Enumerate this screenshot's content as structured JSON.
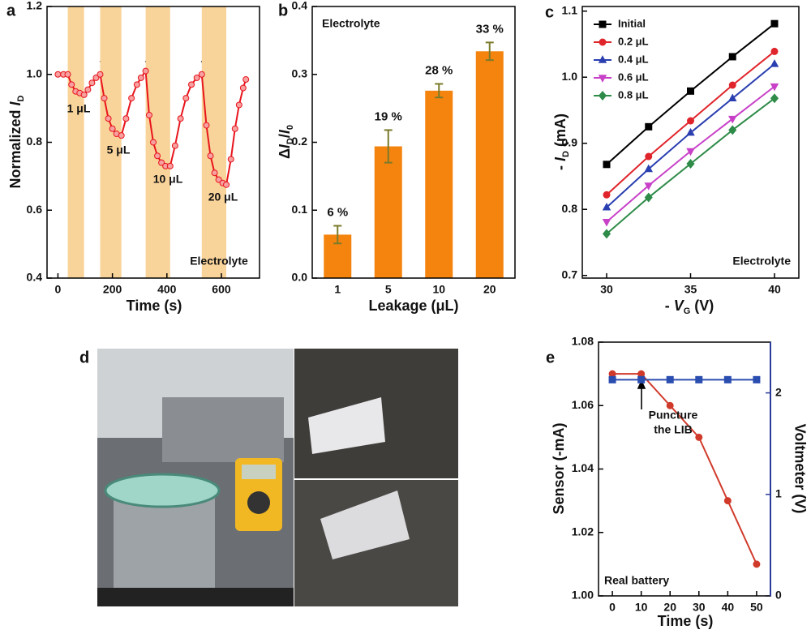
{
  "chart_data": [
    {
      "type": "line",
      "label": "a",
      "xlabel": "Time (s)",
      "ylabel": [
        "Normalized ",
        "I",
        "D"
      ],
      "xlim": [
        -40,
        740
      ],
      "xticks": [
        0,
        200,
        400,
        600
      ],
      "ylim": [
        0.4,
        1.2
      ],
      "yticks": [
        0.4,
        0.6,
        0.8,
        {
          "value": 1,
          "label": "1.0"
        },
        1.2
      ],
      "shaded_regions": [
        [
          36,
          96
        ],
        [
          155,
          233
        ],
        [
          322,
          412
        ],
        [
          528,
          618
        ]
      ],
      "shade_color": "#f9d49a",
      "annotations": [
        "1 μL",
        "5 μL",
        "10 μL",
        "20 μL",
        "Electrolyte"
      ],
      "series": [
        {
          "color": "#e8141c",
          "marker": "circle",
          "x": [
            0,
            20,
            36,
            50,
            65,
            80,
            96,
            110,
            125,
            140,
            155,
            170,
            185,
            200,
            215,
            233,
            250,
            270,
            290,
            305,
            322,
            335,
            350,
            365,
            380,
            395,
            412,
            430,
            450,
            470,
            490,
            510,
            528,
            545,
            560,
            575,
            590,
            605,
            618,
            635,
            650,
            665,
            680,
            690
          ],
          "values": [
            1.0,
            1.0,
            1.0,
            0.97,
            0.95,
            0.945,
            0.94,
            0.955,
            0.975,
            0.99,
            1.0,
            0.93,
            0.87,
            0.84,
            0.825,
            0.82,
            0.87,
            0.93,
            0.97,
            0.99,
            1.01,
            0.88,
            0.8,
            0.76,
            0.74,
            0.73,
            0.73,
            0.79,
            0.87,
            0.93,
            0.97,
            0.99,
            1.0,
            0.85,
            0.76,
            0.71,
            0.69,
            0.68,
            0.675,
            0.75,
            0.84,
            0.91,
            0.96,
            0.985
          ]
        }
      ]
    },
    {
      "type": "bar",
      "label": "b",
      "title": "Electrolyte",
      "xlabel": "Leakage (μL)",
      "ylabel": [
        "Δ",
        "I",
        "D",
        "/",
        "I",
        "0"
      ],
      "categories": [
        "1",
        "5",
        "10",
        "20"
      ],
      "values": [
        0.064,
        0.194,
        0.276,
        0.334
      ],
      "errors": [
        0.013,
        0.024,
        0.01,
        0.013
      ],
      "value_labels": [
        "6 %",
        "19 %",
        "28 %",
        "33 %"
      ],
      "color": "#f5840f",
      "error_color": "#7a7a2a",
      "label_color": "#c0392b",
      "ylim": [
        0,
        0.4
      ],
      "yticks": [
        {
          "value": 0,
          "label": "0.0"
        },
        0.1,
        0.2,
        0.3,
        0.4
      ]
    },
    {
      "type": "line",
      "label": "c",
      "xlabel": [
        "- ",
        "V",
        "G",
        " (V)"
      ],
      "ylabel": [
        "- ",
        "I",
        "D",
        " (mA)"
      ],
      "annotations": [
        "Electrolyte"
      ],
      "legend": "upper left",
      "xlim": [
        28.55,
        41.45
      ],
      "xticks": [
        30,
        35,
        40
      ],
      "ylim": [
        0.696,
        1.107
      ],
      "yticks": [
        0.7,
        0.8,
        0.9,
        {
          "value": 1,
          "label": "1.0"
        },
        1.1
      ],
      "x": [
        30,
        32.5,
        35,
        37.5,
        40
      ],
      "series": [
        {
          "name": "Initial",
          "color": "#000000",
          "marker": "square",
          "values": [
            0.868,
            0.925,
            0.979,
            1.031,
            1.081
          ]
        },
        {
          "name": "0.2 μL",
          "color": "#e0242b",
          "marker": "circle",
          "values": [
            0.822,
            0.88,
            0.934,
            0.988,
            1.039
          ]
        },
        {
          "name": "0.4 μL",
          "color": "#2a3fb0",
          "marker": "triangle-up",
          "values": [
            0.803,
            0.861,
            0.916,
            0.968,
            1.02
          ]
        },
        {
          "name": "0.6 μL",
          "color": "#c840c8",
          "marker": "triangle-down",
          "values": [
            0.781,
            0.836,
            0.888,
            0.937,
            0.986
          ]
        },
        {
          "name": "0.8 μL",
          "color": "#2e8b48",
          "marker": "diamond",
          "values": [
            0.763,
            0.818,
            0.869,
            0.92,
            0.968
          ]
        }
      ]
    },
    {
      "type": "photo",
      "label": "d"
    },
    {
      "type": "line",
      "label": "e",
      "xlabel": "Time (s)",
      "ylabel": "Sensor (-mA)",
      "y2label": "Voltmeter (V)",
      "annotations": [
        "Puncture",
        "the LIB",
        "Real battery"
      ],
      "xlim": [
        -4.8,
        54.8
      ],
      "xticks": [
        0,
        10,
        20,
        30,
        40,
        50
      ],
      "ylim": [
        1.0,
        1.08
      ],
      "yticks": [
        {
          "value": 1.0,
          "label": "1.00"
        },
        {
          "value": 1.02,
          "label": "1.02"
        },
        {
          "value": 1.04,
          "label": "1.04"
        },
        {
          "value": 1.06,
          "label": "1.06"
        },
        {
          "value": 1.08,
          "label": "1.08"
        }
      ],
      "y2lim": [
        0,
        2.5
      ],
      "y2ticks": [
        0,
        1,
        2
      ],
      "x": [
        0,
        10,
        20,
        30,
        40,
        50
      ],
      "series": [
        {
          "color": "#d03a2a",
          "marker": "circle",
          "values": [
            1.07,
            1.07,
            1.06,
            1.05,
            1.03,
            1.01
          ]
        },
        {
          "color": "#2a4db0",
          "marker": "square",
          "axis": "y2",
          "values": [
            2.13,
            2.13,
            2.13,
            2.13,
            2.13,
            2.13
          ]
        }
      ]
    }
  ]
}
